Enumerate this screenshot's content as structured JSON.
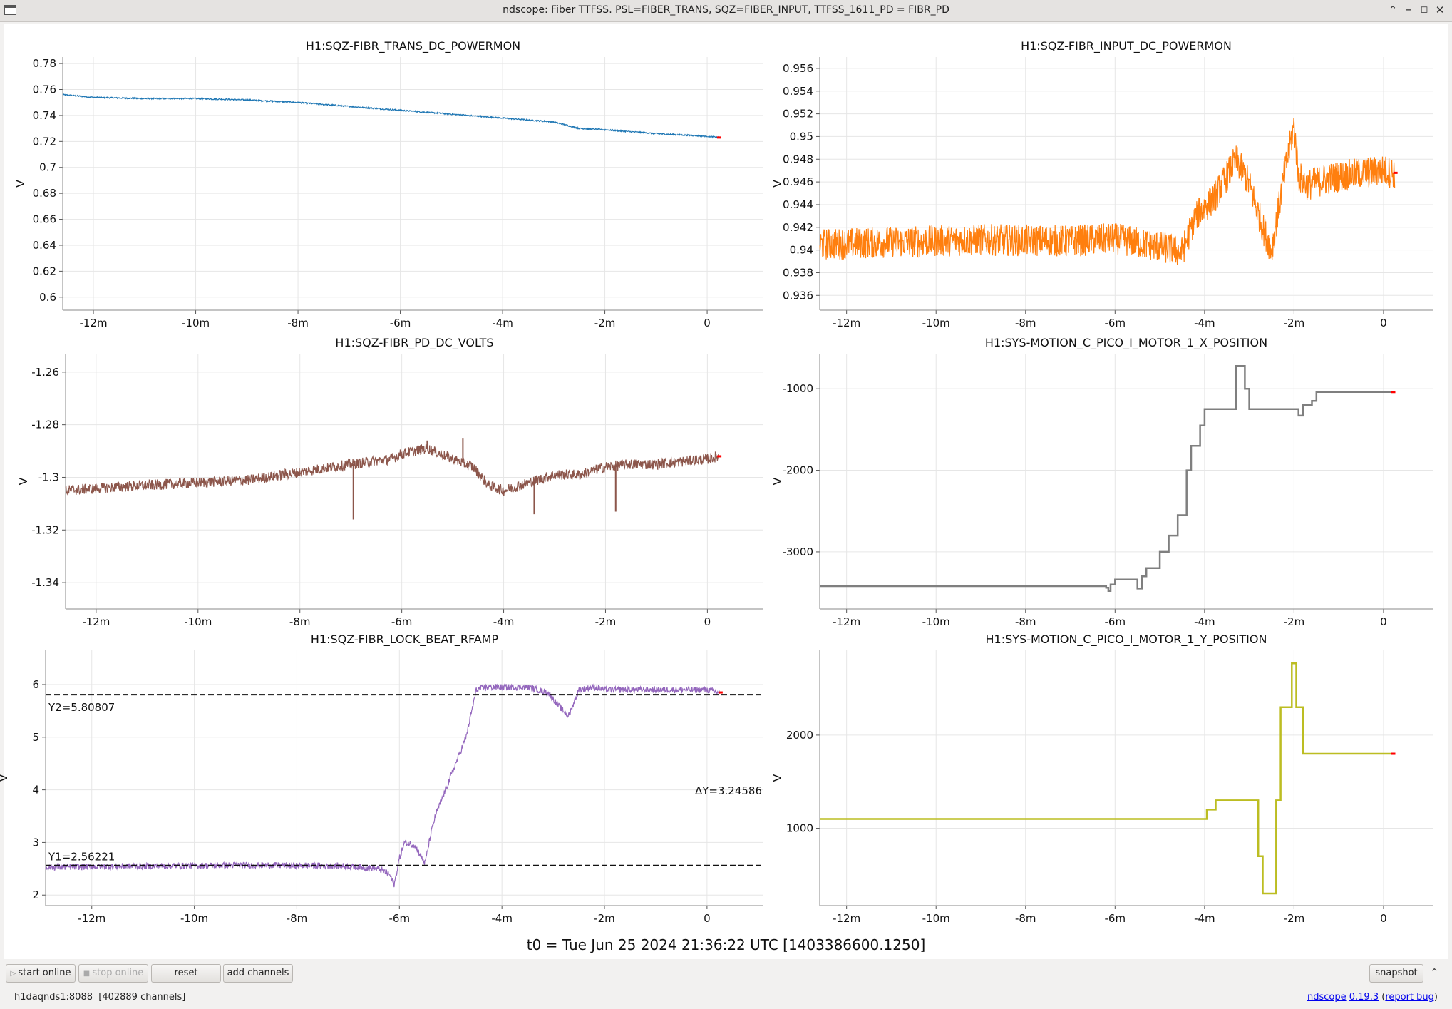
{
  "window": {
    "title": "ndscope: Fiber TTFSS. PSL=FIBER_TRANS, SQZ=FIBER_INPUT, TTFSS_1611_PD = FIBR_PD",
    "controls": [
      "minimize-icon",
      "maximize-icon",
      "restore-icon",
      "close-icon"
    ]
  },
  "t0_label": "t0 = Tue Jun 25 2024 21:36:22 UTC [1403386600.1250]",
  "buttons": {
    "start_online": "start online",
    "stop_online": "stop online",
    "reset": "reset",
    "add_channels": "add channels",
    "snapshot": "snapshot"
  },
  "status": {
    "server": "h1daqnds1:8088",
    "channels": "[402889 channels]",
    "app": "ndscope",
    "version": "0.19.3",
    "report": "report bug"
  },
  "colors": {
    "trans": "#1f77b4",
    "input": "#ff7f0e",
    "pd": "#8c564b",
    "x_pos": "#7f7f7f",
    "rfamp": "#9467bd",
    "y_pos": "#bcbd22",
    "live_marker": "#ff0000"
  },
  "chart_data": [
    {
      "type": "line",
      "channel": "H1:SQZ-FIBR_TRANS_DC_POWERMON",
      "ylabel": "V",
      "x_ticks": [
        "-12m",
        "-10m",
        "-8m",
        "-6m",
        "-4m",
        "-2m",
        "0"
      ],
      "y_ticks": [
        "0.78",
        "0.76",
        "0.74",
        "0.72",
        "0.7",
        "0.68",
        "0.66",
        "0.64",
        "0.62",
        "0.6"
      ],
      "xlim": [
        -12.6,
        1.1
      ],
      "ylim": [
        0.59,
        0.785
      ],
      "noise": 0.001,
      "series_color": "trans",
      "x": [
        -12.6,
        -12,
        -11,
        -10,
        -9,
        -8,
        -7,
        -6,
        -5,
        -4,
        -3,
        -2.5,
        -2,
        -1,
        0,
        0.22
      ],
      "values": [
        0.756,
        0.754,
        0.753,
        0.753,
        0.752,
        0.75,
        0.747,
        0.744,
        0.741,
        0.738,
        0.735,
        0.73,
        0.729,
        0.726,
        0.724,
        0.723
      ]
    },
    {
      "type": "line",
      "channel": "H1:SQZ-FIBR_INPUT_DC_POWERMON",
      "ylabel": "V",
      "x_ticks": [
        "-12m",
        "-10m",
        "-8m",
        "-6m",
        "-4m",
        "-2m",
        "0"
      ],
      "y_ticks": [
        "0.956",
        "0.954",
        "0.952",
        "0.95",
        "0.948",
        "0.946",
        "0.944",
        "0.942",
        "0.94",
        "0.938",
        "0.936"
      ],
      "xlim": [
        -12.6,
        1.1
      ],
      "ylim": [
        0.9347,
        0.957
      ],
      "noise": 0.0028,
      "series_color": "input",
      "x": [
        -12.6,
        -11,
        -9,
        -7,
        -6,
        -5,
        -4.5,
        -4.2,
        -3.8,
        -3.5,
        -3.3,
        -3,
        -2.7,
        -2.5,
        -2.2,
        -2,
        -1.9,
        -1.7,
        -1.5,
        -1,
        0,
        0.25
      ],
      "values": [
        0.9405,
        0.9407,
        0.9409,
        0.9408,
        0.941,
        0.9403,
        0.9398,
        0.943,
        0.9445,
        0.9465,
        0.948,
        0.9458,
        0.942,
        0.94,
        0.947,
        0.951,
        0.9465,
        0.9457,
        0.946,
        0.9465,
        0.947,
        0.9468
      ]
    },
    {
      "type": "line",
      "channel": "H1:SQZ-FIBR_PD_DC_VOLTS",
      "ylabel": "V",
      "x_ticks": [
        "-12m",
        "-10m",
        "-8m",
        "-6m",
        "-4m",
        "-2m",
        "0"
      ],
      "y_ticks": [
        "-1.26",
        "-1.28",
        "-1.3",
        "-1.32",
        "-1.34"
      ],
      "xlim": [
        -12.6,
        1.1
      ],
      "ylim": [
        -1.35,
        -1.253
      ],
      "noise": 0.004,
      "series_color": "pd",
      "x": [
        -12.6,
        -11,
        -9,
        -8,
        -7,
        -6.2,
        -6,
        -5.5,
        -5,
        -4.6,
        -4.3,
        -4,
        -3.5,
        -3,
        -2.5,
        -2,
        -1.5,
        -1,
        0,
        0.22
      ],
      "values": [
        -1.305,
        -1.303,
        -1.301,
        -1.298,
        -1.295,
        -1.293,
        -1.291,
        -1.289,
        -1.293,
        -1.296,
        -1.303,
        -1.305,
        -1.302,
        -1.299,
        -1.299,
        -1.296,
        -1.295,
        -1.295,
        -1.293,
        -1.292
      ],
      "spikes": [
        [
          -6.95,
          -1.316
        ],
        [
          -5.5,
          -1.286
        ],
        [
          -4.8,
          -1.285
        ],
        [
          -3.4,
          -1.314
        ],
        [
          -1.8,
          -1.313
        ]
      ]
    },
    {
      "type": "line",
      "channel": "H1:SYS-MOTION_C_PICO_I_MOTOR_1_X_POSITION",
      "ylabel": "V",
      "x_ticks": [
        "-12m",
        "-10m",
        "-8m",
        "-6m",
        "-4m",
        "-2m",
        "0"
      ],
      "y_ticks": [
        "-1000",
        "-2000",
        "-3000"
      ],
      "xlim": [
        -12.6,
        1.1
      ],
      "ylim": [
        -3700,
        -570
      ],
      "noise": 0,
      "series_color": "x_pos",
      "x": [
        -12.6,
        -6.8,
        -6.2,
        -6.15,
        -6.1,
        -6,
        -5.6,
        -5.5,
        -5.4,
        -5.3,
        -5,
        -4.8,
        -4.6,
        -4.4,
        -4.3,
        -4.1,
        -4,
        -3.5,
        -3.3,
        -3.1,
        -3,
        -2,
        -1.9,
        -1.8,
        -1.6,
        -1.5,
        -1,
        0,
        0.2
      ],
      "values": [
        -3420,
        -3420,
        -3440,
        -3480,
        -3400,
        -3340,
        -3340,
        -3450,
        -3300,
        -3200,
        -3000,
        -2800,
        -2550,
        -2000,
        -1700,
        -1450,
        -1250,
        -1250,
        -720,
        -1000,
        -1250,
        -1250,
        -1330,
        -1200,
        -1150,
        -1040,
        -1040,
        -1040,
        -1040
      ]
    },
    {
      "type": "line",
      "channel": "H1:SQZ-FIBR_LOCK_BEAT_RFAMP",
      "ylabel": "V",
      "x_ticks": [
        "-12m",
        "-10m",
        "-8m",
        "-6m",
        "-4m",
        "-2m",
        "0"
      ],
      "y_ticks": [
        "6",
        "5",
        "4",
        "3",
        "2"
      ],
      "xlim": [
        -12.9,
        1.1
      ],
      "ylim": [
        1.8,
        6.65
      ],
      "noise": 0.12,
      "series_color": "rfamp",
      "x": [
        -12.9,
        -11,
        -9,
        -7,
        -6.4,
        -6.2,
        -6.1,
        -6,
        -5.9,
        -5.7,
        -5.5,
        -5.4,
        -5.3,
        -5.1,
        -4.9,
        -4.7,
        -4.5,
        -4.3,
        -4,
        -3.5,
        -3.1,
        -2.9,
        -2.7,
        -2.5,
        -2.2,
        -2,
        -1,
        0,
        0.25
      ],
      "values": [
        2.53,
        2.55,
        2.57,
        2.55,
        2.5,
        2.4,
        2.2,
        2.7,
        3,
        2.95,
        2.6,
        3.1,
        3.5,
        4,
        4.5,
        5,
        5.9,
        5.95,
        5.95,
        5.95,
        5.85,
        5.6,
        5.4,
        5.9,
        5.95,
        5.9,
        5.9,
        5.9,
        5.85
      ],
      "cursors": {
        "y2": 5.80807,
        "y1": 2.56221,
        "y2_label": "Y2=5.80807",
        "y1_label": "Y1=2.56221",
        "delta_label": "ΔY=3.24586"
      }
    },
    {
      "type": "line",
      "channel": "H1:SYS-MOTION_C_PICO_I_MOTOR_1_Y_POSITION",
      "ylabel": "V",
      "x_ticks": [
        "-12m",
        "-10m",
        "-8m",
        "-6m",
        "-4m",
        "-2m",
        "0"
      ],
      "y_ticks": [
        "2000",
        "1000"
      ],
      "xlim": [
        -12.6,
        1.1
      ],
      "ylim": [
        170,
        2910
      ],
      "noise": 0,
      "series_color": "y_pos",
      "x": [
        -12.6,
        -4,
        -3.95,
        -3.8,
        -3.75,
        -3.6,
        -2.9,
        -2.8,
        -2.7,
        -2.4,
        -2.3,
        -2.2,
        -2.05,
        -1.95,
        -1.8,
        0,
        0.2
      ],
      "values": [
        1100,
        1100,
        1200,
        1200,
        1300,
        1300,
        1300,
        700,
        300,
        1300,
        2300,
        2300,
        2770,
        2300,
        1800,
        1800,
        1800
      ]
    }
  ]
}
